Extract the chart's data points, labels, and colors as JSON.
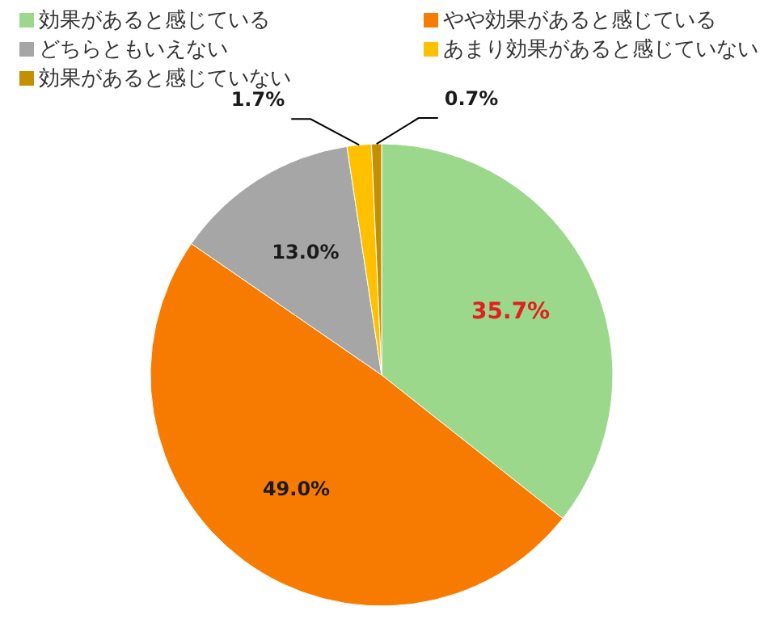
{
  "chart_data": {
    "type": "pie",
    "categories": [
      "効果があると感じている",
      "やや効果があると感じている",
      "どちらともいえない",
      "あまり効果があると感じていない",
      "効果があると感じていない"
    ],
    "values": [
      35.7,
      49.0,
      13.0,
      1.7,
      0.7
    ],
    "value_labels": [
      "35.7%",
      "49.0%",
      "13.0%",
      "1.7%",
      "0.7%"
    ],
    "colors": [
      "#9bd88b",
      "#f77b00",
      "#a6a6a6",
      "#ffc000",
      "#c49000"
    ],
    "legend": "top left"
  }
}
